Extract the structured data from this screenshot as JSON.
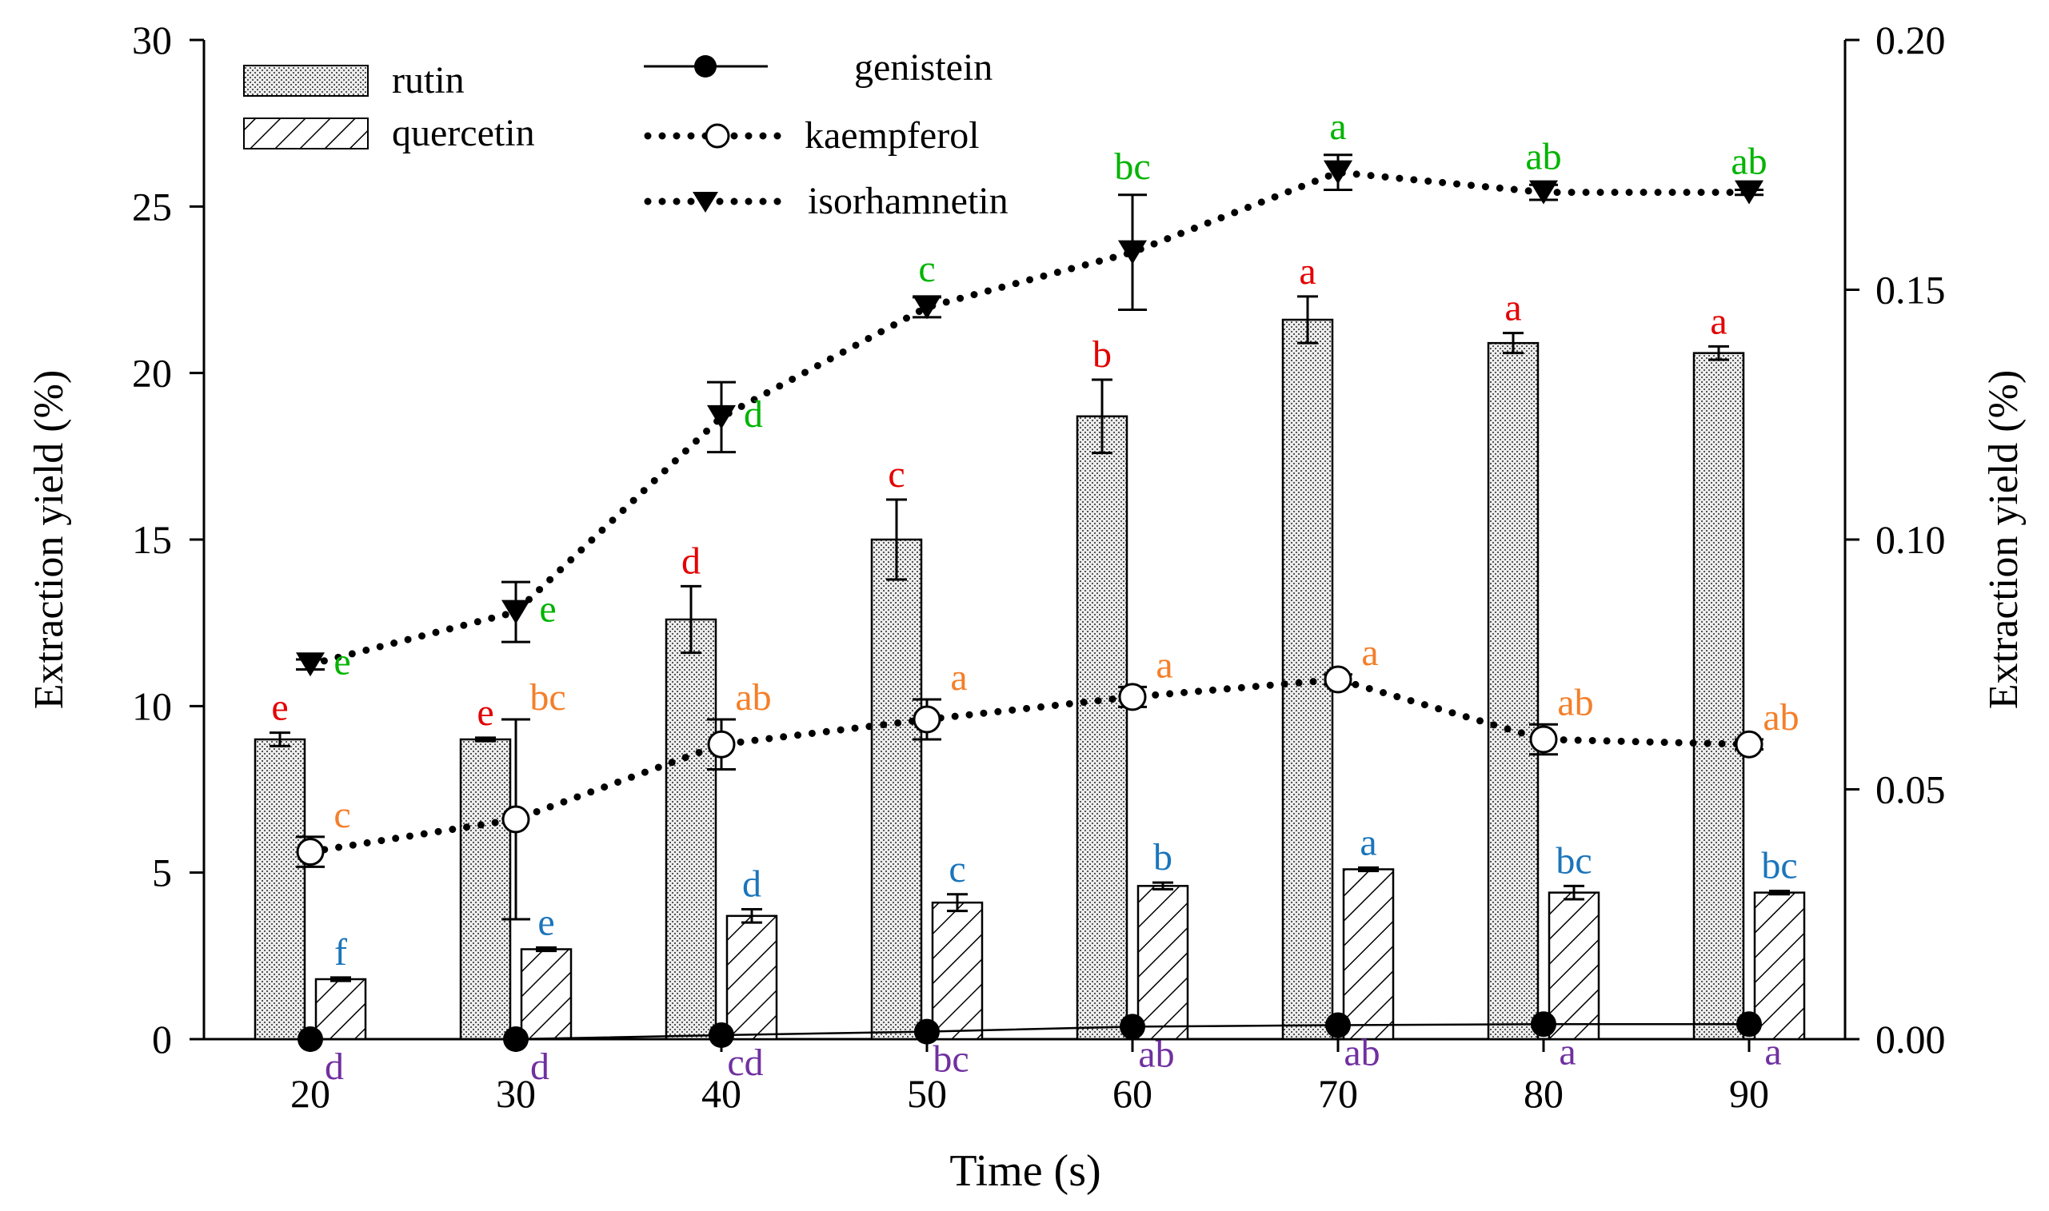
{
  "chart_data": {
    "type": "bar+line",
    "xlabel": "Time (s)",
    "ylabel_left": "Extraction yield (%)",
    "ylabel_right": "Extraction yield (%)",
    "categories": [
      "20",
      "30",
      "40",
      "50",
      "60",
      "70",
      "80",
      "90"
    ],
    "x": [
      20,
      30,
      40,
      50,
      60,
      70,
      80,
      90
    ],
    "ylim_left": [
      0,
      30
    ],
    "yticks_left": [
      "0",
      "5",
      "10",
      "15",
      "20",
      "25",
      "30"
    ],
    "ylim_right": [
      0,
      0.2
    ],
    "yticks_right": [
      "0.00",
      "0.05",
      "0.10",
      "0.15",
      "0.20"
    ],
    "colors": {
      "rutin": "#e30000",
      "quercetin": "#1b75bb",
      "kaempferol": "#f47f2a",
      "isorhamnetin": "#00b400",
      "genistein": "#7030a0",
      "axis": "#000000"
    },
    "bar_series": [
      {
        "name": "rutin",
        "pattern": "dotted",
        "values": [
          9.0,
          9.0,
          12.6,
          15.0,
          18.7,
          21.6,
          20.9,
          20.6
        ],
        "errors": [
          0.2,
          0.05,
          1.0,
          1.2,
          1.1,
          0.7,
          0.3,
          0.2
        ],
        "letters": [
          "e",
          "e",
          "d",
          "c",
          "b",
          "a",
          "a",
          "a"
        ]
      },
      {
        "name": "quercetin",
        "pattern": "hatched",
        "values": [
          1.8,
          2.7,
          3.7,
          4.1,
          4.6,
          5.1,
          4.4,
          4.4
        ],
        "errors": [
          0.05,
          0.05,
          0.2,
          0.25,
          0.1,
          0.05,
          0.2,
          0.05
        ],
        "letters": [
          "f",
          "e",
          "d",
          "c",
          "b",
          "a",
          "bc",
          "bc"
        ]
      }
    ],
    "line_series": [
      {
        "name": "genistein",
        "marker": "filled-circle",
        "line": "solid",
        "axis": "right",
        "values": [
          0.0,
          0.0,
          0.0008,
          0.0015,
          0.0025,
          0.0028,
          0.003,
          0.003
        ],
        "errors": [
          0,
          0,
          0,
          0,
          0,
          0,
          0,
          0
        ],
        "letters": [
          "d",
          "d",
          "cd",
          "bc",
          "ab",
          "ab",
          "a",
          "a"
        ]
      },
      {
        "name": "kaempferol",
        "marker": "open-circle",
        "line": "dotted",
        "axis": "right",
        "values": [
          0.0375,
          0.044,
          0.059,
          0.064,
          0.0685,
          0.072,
          0.06,
          0.059
        ],
        "errors": [
          0.003,
          0.02,
          0.005,
          0.004,
          0.002,
          0.001,
          0.003,
          0.001
        ],
        "letters": [
          "c",
          "bc",
          "ab",
          "a",
          "a",
          "a",
          "ab",
          "ab"
        ]
      },
      {
        "name": "isorhamnetin",
        "marker": "filled-triangle-down",
        "line": "dotted",
        "axis": "right",
        "values": [
          0.075,
          0.0855,
          0.1245,
          0.1465,
          0.1575,
          0.1735,
          0.1695,
          0.1695
        ],
        "errors": [
          0.001,
          0.006,
          0.007,
          0.002,
          0.0115,
          0.0035,
          0.0015,
          0.0005
        ],
        "letters": [
          "e",
          "e",
          "d",
          "c",
          "bc",
          "a",
          "ab",
          "ab"
        ]
      }
    ]
  }
}
